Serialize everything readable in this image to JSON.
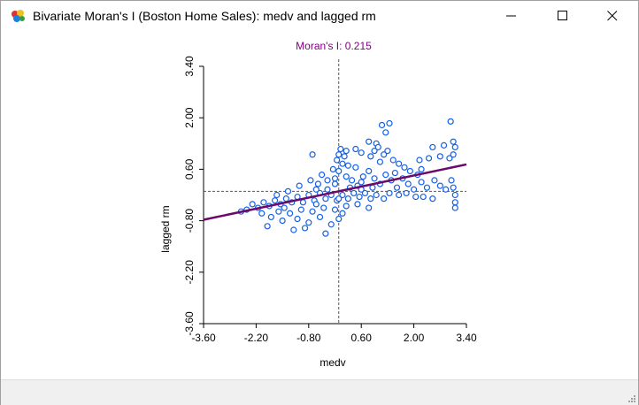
{
  "window": {
    "title": "Bivariate Moran's I (Boston Home Sales): medv and lagged rm",
    "icon": "geoda-app-icon"
  },
  "chart_data": {
    "type": "scatter",
    "title": "Moran's I: 0.215",
    "xlabel": "medv",
    "ylabel": "lagged rm",
    "xlim": [
      -3.6,
      3.4
    ],
    "ylim": [
      -3.6,
      3.4
    ],
    "xticks": [
      "-3.60",
      "-2.20",
      "-0.80",
      "0.60",
      "2.00",
      "3.40"
    ],
    "yticks": [
      "-3.60",
      "-2.20",
      "-0.80",
      "0.60",
      "2.00",
      "3.40"
    ],
    "regression_line": {
      "slope": 0.215,
      "intercept": 0.0
    },
    "colors": {
      "points": "#1560e8",
      "regression": "#6a0a6a",
      "title": "#800080",
      "reference": "#555555"
    },
    "points": [
      [
        2.98,
        1.9
      ],
      [
        1.25,
        1.6
      ],
      [
        1.15,
        1.8
      ],
      [
        1.35,
        1.85
      ],
      [
        0.8,
        1.35
      ],
      [
        1.0,
        1.3
      ],
      [
        1.05,
        1.2
      ],
      [
        0.45,
        1.15
      ],
      [
        0.6,
        1.05
      ],
      [
        0.95,
        1.1
      ],
      [
        1.2,
        1.0
      ],
      [
        1.3,
        1.1
      ],
      [
        0.85,
        0.95
      ],
      [
        1.45,
        0.85
      ],
      [
        1.1,
        0.8
      ],
      [
        2.5,
        1.2
      ],
      [
        2.8,
        1.25
      ],
      [
        3.05,
        1.35
      ],
      [
        3.1,
        1.2
      ],
      [
        2.4,
        0.9
      ],
      [
        2.15,
        0.85
      ],
      [
        2.7,
        0.95
      ],
      [
        2.95,
        0.9
      ],
      [
        3.05,
        1.0
      ],
      [
        0.0,
        1.0
      ],
      [
        0.05,
        1.15
      ],
      [
        0.15,
        0.95
      ],
      [
        0.2,
        1.1
      ],
      [
        -0.05,
        0.85
      ],
      [
        0.1,
        0.75
      ],
      [
        -0.7,
        1.0
      ],
      [
        -0.55,
        0.2
      ],
      [
        -0.3,
        0.3
      ],
      [
        -0.1,
        0.2
      ],
      [
        0.0,
        0.55
      ],
      [
        0.2,
        0.4
      ],
      [
        0.35,
        0.3
      ],
      [
        0.5,
        0.15
      ],
      [
        0.65,
        0.4
      ],
      [
        0.8,
        0.55
      ],
      [
        0.95,
        0.35
      ],
      [
        1.1,
        0.2
      ],
      [
        1.25,
        0.45
      ],
      [
        1.4,
        0.3
      ],
      [
        1.55,
        0.1
      ],
      [
        1.7,
        0.35
      ],
      [
        1.85,
        0.2
      ],
      [
        2.0,
        0.05
      ],
      [
        2.2,
        0.25
      ],
      [
        2.35,
        0.1
      ],
      [
        2.55,
        0.3
      ],
      [
        2.7,
        0.15
      ],
      [
        2.85,
        0.05
      ],
      [
        3.0,
        0.3
      ],
      [
        3.1,
        -0.1
      ],
      [
        3.1,
        -0.3
      ],
      [
        3.1,
        -0.45
      ],
      [
        3.05,
        0.1
      ],
      [
        2.5,
        -0.2
      ],
      [
        2.25,
        -0.15
      ],
      [
        2.05,
        -0.15
      ],
      [
        1.8,
        -0.05
      ],
      [
        1.6,
        -0.1
      ],
      [
        1.35,
        -0.05
      ],
      [
        1.2,
        -0.2
      ],
      [
        1.0,
        -0.1
      ],
      [
        0.85,
        -0.2
      ],
      [
        0.7,
        -0.05
      ],
      [
        0.55,
        -0.15
      ],
      [
        0.4,
        -0.05
      ],
      [
        0.25,
        -0.2
      ],
      [
        0.1,
        -0.1
      ],
      [
        -0.05,
        -0.25
      ],
      [
        -0.2,
        -0.1
      ],
      [
        -0.35,
        -0.2
      ],
      [
        -0.5,
        -0.05
      ],
      [
        -0.65,
        -0.25
      ],
      [
        -0.8,
        -0.1
      ],
      [
        -0.95,
        -0.3
      ],
      [
        -1.1,
        -0.15
      ],
      [
        -1.25,
        -0.3
      ],
      [
        -1.4,
        -0.2
      ],
      [
        -1.55,
        -0.35
      ],
      [
        -1.7,
        -0.25
      ],
      [
        -1.85,
        -0.4
      ],
      [
        -2.0,
        -0.3
      ],
      [
        -2.15,
        -0.45
      ],
      [
        -2.3,
        -0.35
      ],
      [
        -1.6,
        -0.55
      ],
      [
        -1.3,
        -0.6
      ],
      [
        -1.0,
        -0.5
      ],
      [
        -0.7,
        -0.55
      ],
      [
        -0.4,
        -0.45
      ],
      [
        -0.1,
        -0.5
      ],
      [
        0.2,
        -0.4
      ],
      [
        0.5,
        -0.35
      ],
      [
        0.8,
        -0.45
      ],
      [
        -1.8,
        -0.7
      ],
      [
        -1.5,
        -0.8
      ],
      [
        -1.1,
        -0.75
      ],
      [
        -0.8,
        -0.85
      ],
      [
        -0.5,
        -0.7
      ],
      [
        -0.2,
        -0.9
      ],
      [
        0.0,
        -0.75
      ],
      [
        -1.2,
        -1.05
      ],
      [
        -0.9,
        -1.0
      ],
      [
        -0.35,
        -1.15
      ],
      [
        -1.9,
        -0.95
      ],
      [
        -2.05,
        -0.6
      ],
      [
        -0.6,
        0.05
      ],
      [
        -0.3,
        0.05
      ],
      [
        0.3,
        0.1
      ],
      [
        0.6,
        0.25
      ],
      [
        0.9,
        0.1
      ],
      [
        1.5,
        0.5
      ],
      [
        1.9,
        0.55
      ],
      [
        2.2,
        0.6
      ],
      [
        0.45,
        0.65
      ],
      [
        0.25,
        0.7
      ],
      [
        -0.15,
        0.6
      ],
      [
        -0.45,
        0.45
      ],
      [
        -0.75,
        0.3
      ],
      [
        -1.05,
        0.15
      ],
      [
        -1.35,
        0.0
      ],
      [
        -1.65,
        -0.1
      ],
      [
        -2.45,
        -0.5
      ],
      [
        -2.6,
        -0.55
      ],
      [
        0.0,
        -0.2
      ],
      [
        -0.1,
        0.35
      ],
      [
        0.6,
        0.05
      ],
      [
        1.75,
        0.65
      ],
      [
        1.6,
        0.75
      ],
      [
        2.1,
        0.45
      ],
      [
        -1.45,
        -0.45
      ],
      [
        -0.6,
        -0.35
      ],
      [
        0.1,
        -0.6
      ]
    ]
  }
}
